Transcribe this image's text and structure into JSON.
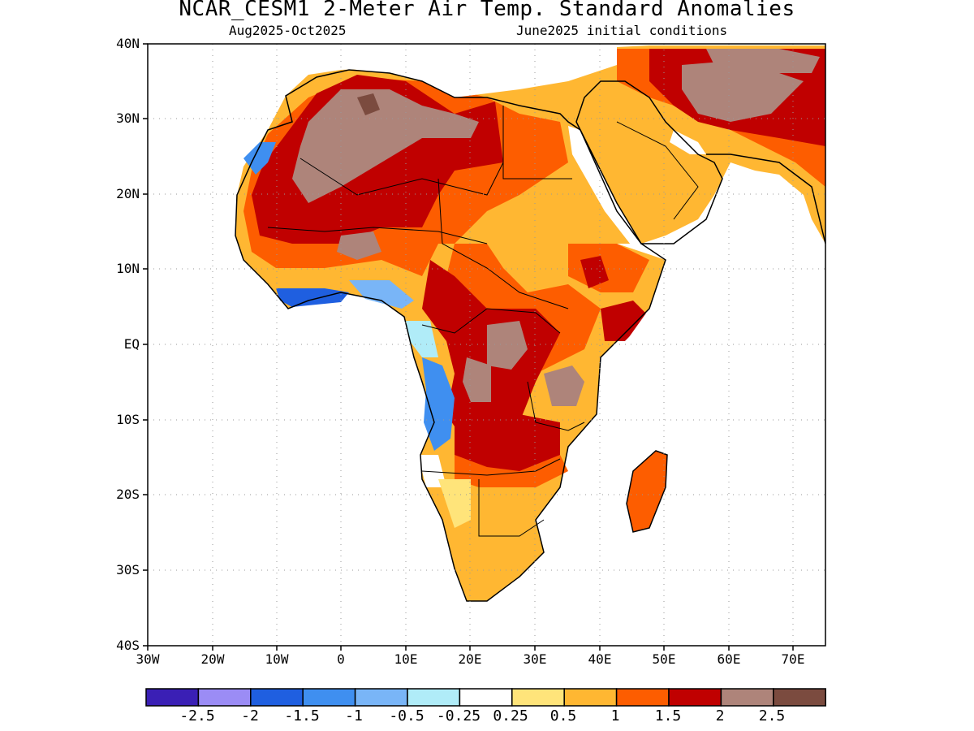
{
  "header": {
    "title": "NCAR_CESM1 2-Meter Air Temp. Standard Anomalies",
    "valid_period": "Aug2025-Oct2025",
    "init_conditions": "June2025 initial conditions"
  },
  "axes": {
    "lat_labels": [
      "40N",
      "30N",
      "20N",
      "10N",
      "EQ",
      "10S",
      "20S",
      "30S",
      "40S"
    ],
    "lon_labels": [
      "30W",
      "20W",
      "10W",
      "0",
      "10E",
      "20E",
      "30E",
      "40E",
      "50E",
      "60E",
      "70E"
    ]
  },
  "colorbar": {
    "colors": [
      "#3a1fb5",
      "#9b8cf5",
      "#1f5fe0",
      "#3f8ff0",
      "#79b5f7",
      "#b0ecf8",
      "#ffffff",
      "#ffe47a",
      "#ffb732",
      "#fd5d00",
      "#c00000",
      "#ae847a",
      "#7b4b3f"
    ],
    "labels": [
      "-2.5",
      "-2",
      "-1.5",
      "-1",
      "-0.5",
      "-0.25",
      "0.25",
      "0.5",
      "1",
      "1.5",
      "2",
      "2.5"
    ]
  },
  "map": {
    "extent": {
      "lon": [
        -30,
        75
      ],
      "lat": [
        -40,
        40
      ]
    },
    "land_color": "#ffffff",
    "ocean_color": "#ffffff"
  }
}
